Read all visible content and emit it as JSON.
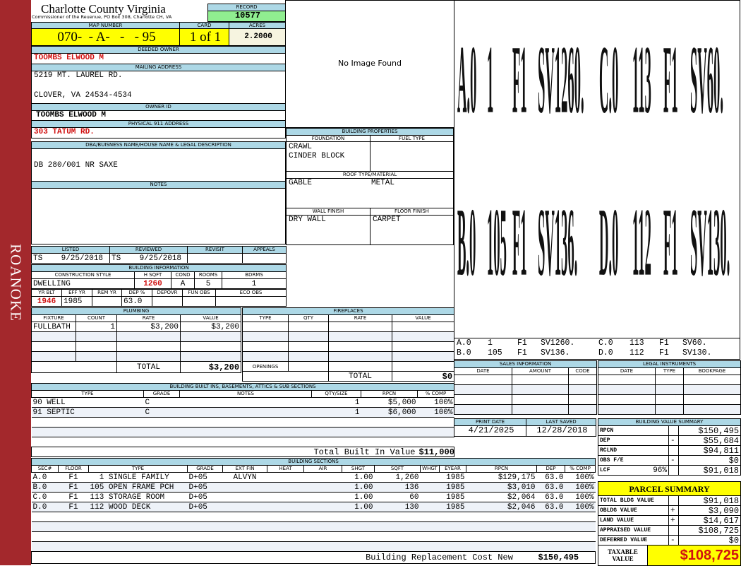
{
  "sidebar": {
    "district": "ROANOKE"
  },
  "header": {
    "county": "Charlotte County Virginia",
    "office": "Commissioner of the Reuenue, PO Box 308, Charlotte CH, VA",
    "record_label": "RECORD",
    "record": "10577"
  },
  "parcel": {
    "map_number_label": "MAP NUMBER",
    "map_number": "070-  - A-   -   - 95",
    "card_label": "CARD",
    "card": "1 of 1",
    "acres_label": "ACRES",
    "acres": "2.2000"
  },
  "owner": {
    "deeded_label": "DEEDED OWNER",
    "deeded": "TOOMBS ELWOOD M",
    "mailing_label": "MAILING ADDRESS",
    "mailing_line1": "5219 MT. LAUREL RD.",
    "mailing_line2": "CLOVER, VA 24534-4534",
    "owner_id_label": "OWNER ID",
    "owner_id": "TOOMBS ELWOOD M",
    "physical_label": "PHYSICAL 911 ADDRESS",
    "physical": "303 TATUM RD."
  },
  "image": {
    "placeholder": "No Image Found"
  },
  "dba": {
    "label": "DBA/BUISNESS NAME/HOUSE NAME & LEGAL DESCRIPTION",
    "value": "DB 280/001 NR SAXE"
  },
  "notes": {
    "label": "NOTES",
    "value": ""
  },
  "building_properties": {
    "label": "BUILDING PROPERTIES",
    "foundation_label": "FOUNDATION",
    "foundation": "CRAWL\nCINDER BLOCK",
    "fuel_label": "FUEL TYPE",
    "fuel": "",
    "roof_label": "ROOF TYPE/MATERIAL",
    "roof_type": "GABLE",
    "roof_material": "METAL",
    "wall_label": "WALL FINISH",
    "wall": "DRY WALL",
    "floor_label": "FLOOR FINISH",
    "floor": "CARPET"
  },
  "review": {
    "headers": [
      "LISTED",
      "REVIEWED",
      "REVISIT",
      "APPEALS"
    ],
    "values": [
      "TS    9/25/2018",
      "TS    9/25/2018",
      "",
      ""
    ]
  },
  "building_info": {
    "label": "BUILDING INFORMATION",
    "headers1": [
      "CONSTRUCTION STYLE",
      "H SQFT",
      "COND",
      "ROOMS",
      "BDRMS"
    ],
    "values1": [
      "DWELLING",
      "1260",
      "A",
      "5",
      "1"
    ],
    "headers2": [
      "YR BLT",
      "EFF YR",
      "REM YR",
      "DEP %",
      "DEPOVR",
      "FUN OBS",
      "ECO OBS"
    ],
    "values2": [
      "1946",
      "1985",
      "",
      "63.0",
      "",
      "",
      ""
    ]
  },
  "plumbing": {
    "label": "PLUMBING",
    "headers": [
      "FIXTURE",
      "COUNT",
      "RATE",
      "VALUE"
    ],
    "rows": [
      [
        "FULLBATH",
        "1",
        "$3,200",
        "$3,200"
      ]
    ],
    "total_label": "TOTAL",
    "total": "$3,200"
  },
  "fireplaces": {
    "label": "FIREPLACES",
    "headers": [
      "TYPE",
      "QTY",
      "RATE",
      "VALUE"
    ],
    "rows": [],
    "openings_label": "OPENINGS",
    "total_label": "TOTAL",
    "total": "$0"
  },
  "built_ins": {
    "label": "BUILDING BUILT INS, BASEMENTS, ATTICS & SUB SECTIONS",
    "headers": [
      "TYPE",
      "GRADE",
      "NOTES",
      "QTY/SIZE",
      "RPCN",
      "% COMP"
    ],
    "rows": [
      [
        "90 WELL",
        "C",
        "",
        "1",
        "$5,000",
        "100%"
      ],
      [
        "91 SEPTIC",
        "C",
        "",
        "1",
        "$6,000",
        "100%"
      ]
    ],
    "total_label": "Total Built In Value",
    "total": "$11,000"
  },
  "sections": {
    "label": "BUILDING SECTIONS",
    "headers": [
      "SEC#",
      "FLOOR",
      "TYPE",
      "GRADE",
      "EXT FIN",
      "HEAT",
      "AIR",
      "SHGT",
      "SQFT",
      "WHGT",
      "EYEAR",
      "RPCN",
      "DEP",
      "% COMP"
    ],
    "rows": [
      [
        "A.0",
        "F1",
        "  1 SINGLE FAMILY",
        "D+05",
        "ALVYN",
        "",
        "",
        "1.00",
        "1,260",
        "",
        "1985",
        "$129,175",
        "63.0",
        "100%"
      ],
      [
        "B.0",
        "F1",
        "105 OPEN FRAME PCH",
        "D+05",
        "",
        "",
        "",
        "1.00",
        "136",
        "",
        "1985",
        "$3,010",
        "63.0",
        "100%"
      ],
      [
        "C.0",
        "F1",
        "113 STORAGE ROOM",
        "D+05",
        "",
        "",
        "",
        "1.00",
        "60",
        "",
        "1985",
        "$2,064",
        "63.0",
        "100%"
      ],
      [
        "D.0",
        "F1",
        "112 WOOD DECK",
        "D+05",
        "",
        "",
        "",
        "1.00",
        "130",
        "",
        "1985",
        "$2,046",
        "63.0",
        "100%"
      ]
    ],
    "total_label": "Building Replacement Cost New",
    "total": "$150,495"
  },
  "sketch": {
    "labels": [
      [
        "A.0",
        "1",
        "F1",
        "SV1260."
      ],
      [
        "B.0",
        "105",
        "F1",
        "SV136."
      ],
      [
        "C.0",
        "113",
        "F1",
        "SV60."
      ],
      [
        "D.0",
        "112",
        "F1",
        "SV130."
      ]
    ]
  },
  "sales": {
    "label": "SALES INFORMATION",
    "headers": [
      "DATE",
      "AMOUNT",
      "CODE"
    ],
    "rows": []
  },
  "legal": {
    "label": "LEGAL INSTRUMENTS",
    "headers": [
      "DATE",
      "TYPE",
      "BOOKPAGE"
    ],
    "rows": []
  },
  "dates": {
    "print_label": "PRINT DATE",
    "print": "4/21/2025",
    "saved_label": "LAST SAVED",
    "saved": "12/28/2018"
  },
  "value_summary": {
    "label": "BUILDING VALUE SUMMARY",
    "rows": [
      [
        "RPCN",
        "",
        "",
        "$150,495"
      ],
      [
        "DEP",
        "",
        "-",
        "$55,684"
      ],
      [
        "RCLND",
        "",
        "",
        "$94,811"
      ],
      [
        "OBS F/E",
        "",
        "-",
        "$0"
      ],
      [
        "LCF",
        "96%",
        "",
        "$91,018"
      ]
    ]
  },
  "parcel_summary": {
    "label": "PARCEL SUMMARY",
    "rows": [
      [
        "TOTAL BLDG VALUE",
        "",
        "$91,018"
      ],
      [
        "OBLDG VALUE",
        "+",
        "$3,090"
      ],
      [
        "LAND VALUE",
        "+",
        "$14,617"
      ],
      [
        "APPRAISED VALUE",
        "",
        "$108,725"
      ],
      [
        "DEFERRED VALUE",
        "-",
        "$0"
      ]
    ],
    "taxable_label": "TAXABLE\nVALUE",
    "taxable": "$108,725"
  },
  "colors": {
    "sidebar": "#a3282c",
    "header_blue": "#add8e6",
    "highlight_yellow": "#ffff00",
    "record_green": "#90ee90",
    "emphasis_red": "#d01010"
  }
}
